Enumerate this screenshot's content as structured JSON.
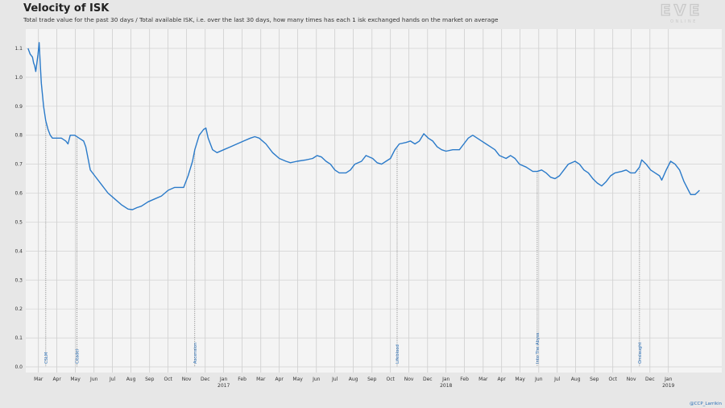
{
  "title": "Velocity of ISK",
  "subtitle": "Total trade value for the past 30 days / Total available ISK, i.e. over the last 30 days, how many times has each 1 isk exchanged hands on the market on average",
  "logo": {
    "text": "EVE",
    "subtext": "ONLINE"
  },
  "credit": "@CCP_Larrikin",
  "chart_data": {
    "type": "line",
    "title": "Velocity of ISK",
    "xlabel": "",
    "ylabel": "",
    "xlim": [
      2016.11,
      2019.24
    ],
    "ylim": [
      0,
      1.1
    ],
    "yticks": [
      "0.0",
      "0.1",
      "0.2",
      "0.3",
      "0.4",
      "0.5",
      "0.6",
      "0.7",
      "0.8",
      "0.9",
      "1.0",
      "1.1"
    ],
    "ytick_values": [
      0,
      0.1,
      0.2,
      0.3,
      0.4,
      0.5,
      0.6,
      0.7,
      0.8,
      0.9,
      1.0,
      1.1
    ],
    "grid": true,
    "line_color": "#2a7ac9",
    "xticks": [
      {
        "t": 2016.167,
        "label": "Mar",
        "year": ""
      },
      {
        "t": 2016.25,
        "label": "Apr",
        "year": ""
      },
      {
        "t": 2016.333,
        "label": "May",
        "year": ""
      },
      {
        "t": 2016.417,
        "label": "Jun",
        "year": ""
      },
      {
        "t": 2016.5,
        "label": "Jul",
        "year": ""
      },
      {
        "t": 2016.583,
        "label": "Aug",
        "year": ""
      },
      {
        "t": 2016.667,
        "label": "Sep",
        "year": ""
      },
      {
        "t": 2016.75,
        "label": "Oct",
        "year": ""
      },
      {
        "t": 2016.833,
        "label": "Nov",
        "year": ""
      },
      {
        "t": 2016.917,
        "label": "Dec",
        "year": ""
      },
      {
        "t": 2017.0,
        "label": "Jan",
        "year": "2017"
      },
      {
        "t": 2017.083,
        "label": "Feb",
        "year": ""
      },
      {
        "t": 2017.167,
        "label": "Mar",
        "year": ""
      },
      {
        "t": 2017.25,
        "label": "Apr",
        "year": ""
      },
      {
        "t": 2017.333,
        "label": "May",
        "year": ""
      },
      {
        "t": 2017.417,
        "label": "Jun",
        "year": ""
      },
      {
        "t": 2017.5,
        "label": "Jul",
        "year": ""
      },
      {
        "t": 2017.583,
        "label": "Aug",
        "year": ""
      },
      {
        "t": 2017.667,
        "label": "Sep",
        "year": ""
      },
      {
        "t": 2017.75,
        "label": "Oct",
        "year": ""
      },
      {
        "t": 2017.833,
        "label": "Nov",
        "year": ""
      },
      {
        "t": 2017.917,
        "label": "Dec",
        "year": ""
      },
      {
        "t": 2018.0,
        "label": "Jan",
        "year": "2018"
      },
      {
        "t": 2018.083,
        "label": "Feb",
        "year": ""
      },
      {
        "t": 2018.167,
        "label": "Mar",
        "year": ""
      },
      {
        "t": 2018.25,
        "label": "Apr",
        "year": ""
      },
      {
        "t": 2018.333,
        "label": "May",
        "year": ""
      },
      {
        "t": 2018.417,
        "label": "Jun",
        "year": ""
      },
      {
        "t": 2018.5,
        "label": "Jul",
        "year": ""
      },
      {
        "t": 2018.583,
        "label": "Aug",
        "year": ""
      },
      {
        "t": 2018.667,
        "label": "Sep",
        "year": ""
      },
      {
        "t": 2018.75,
        "label": "Oct",
        "year": ""
      },
      {
        "t": 2018.833,
        "label": "Nov",
        "year": ""
      },
      {
        "t": 2018.917,
        "label": "Dec",
        "year": ""
      },
      {
        "t": 2019.0,
        "label": "Jan",
        "year": "2019"
      }
    ],
    "annotations": [
      {
        "t": 2016.2,
        "label": "CSLM"
      },
      {
        "t": 2016.34,
        "label": "Citadel"
      },
      {
        "t": 2016.87,
        "label": "Ascension"
      },
      {
        "t": 2017.78,
        "label": "Lifeblood"
      },
      {
        "t": 2018.41,
        "label": "Into The Abyss"
      },
      {
        "t": 2018.87,
        "label": "Onslaught"
      }
    ],
    "series": [
      {
        "points": [
          [
            2016.12,
            1.1
          ],
          [
            2016.13,
            1.08
          ],
          [
            2016.14,
            1.07
          ],
          [
            2016.145,
            1.05
          ],
          [
            2016.15,
            1.04
          ],
          [
            2016.155,
            1.02
          ],
          [
            2016.16,
            1.05
          ],
          [
            2016.165,
            1.08
          ],
          [
            2016.17,
            1.12
          ],
          [
            2016.175,
            1.05
          ],
          [
            2016.18,
            0.98
          ],
          [
            2016.19,
            0.9
          ],
          [
            2016.2,
            0.85
          ],
          [
            2016.21,
            0.82
          ],
          [
            2016.22,
            0.8
          ],
          [
            2016.23,
            0.79
          ],
          [
            2016.25,
            0.79
          ],
          [
            2016.27,
            0.79
          ],
          [
            2016.29,
            0.78
          ],
          [
            2016.3,
            0.77
          ],
          [
            2016.31,
            0.8
          ],
          [
            2016.33,
            0.8
          ],
          [
            2016.35,
            0.79
          ],
          [
            2016.37,
            0.78
          ],
          [
            2016.38,
            0.76
          ],
          [
            2016.39,
            0.72
          ],
          [
            2016.4,
            0.68
          ],
          [
            2016.42,
            0.66
          ],
          [
            2016.45,
            0.63
          ],
          [
            2016.48,
            0.6
          ],
          [
            2016.51,
            0.58
          ],
          [
            2016.54,
            0.56
          ],
          [
            2016.57,
            0.545
          ],
          [
            2016.59,
            0.543
          ],
          [
            2016.61,
            0.55
          ],
          [
            2016.63,
            0.555
          ],
          [
            2016.66,
            0.57
          ],
          [
            2016.69,
            0.58
          ],
          [
            2016.72,
            0.59
          ],
          [
            2016.75,
            0.61
          ],
          [
            2016.78,
            0.62
          ],
          [
            2016.8,
            0.62
          ],
          [
            2016.82,
            0.62
          ],
          [
            2016.84,
            0.66
          ],
          [
            2016.86,
            0.71
          ],
          [
            2016.87,
            0.75
          ],
          [
            2016.89,
            0.8
          ],
          [
            2016.91,
            0.82
          ],
          [
            2016.92,
            0.825
          ],
          [
            2016.93,
            0.79
          ],
          [
            2016.95,
            0.75
          ],
          [
            2016.97,
            0.74
          ],
          [
            2017.0,
            0.75
          ],
          [
            2017.03,
            0.76
          ],
          [
            2017.06,
            0.77
          ],
          [
            2017.09,
            0.78
          ],
          [
            2017.12,
            0.79
          ],
          [
            2017.14,
            0.795
          ],
          [
            2017.16,
            0.79
          ],
          [
            2017.19,
            0.77
          ],
          [
            2017.22,
            0.74
          ],
          [
            2017.25,
            0.72
          ],
          [
            2017.28,
            0.71
          ],
          [
            2017.3,
            0.705
          ],
          [
            2017.33,
            0.71
          ],
          [
            2017.37,
            0.715
          ],
          [
            2017.4,
            0.72
          ],
          [
            2017.42,
            0.73
          ],
          [
            2017.44,
            0.725
          ],
          [
            2017.46,
            0.71
          ],
          [
            2017.48,
            0.7
          ],
          [
            2017.5,
            0.68
          ],
          [
            2017.52,
            0.67
          ],
          [
            2017.55,
            0.67
          ],
          [
            2017.57,
            0.68
          ],
          [
            2017.59,
            0.7
          ],
          [
            2017.62,
            0.71
          ],
          [
            2017.64,
            0.73
          ],
          [
            2017.67,
            0.72
          ],
          [
            2017.69,
            0.705
          ],
          [
            2017.71,
            0.7
          ],
          [
            2017.73,
            0.71
          ],
          [
            2017.75,
            0.72
          ],
          [
            2017.77,
            0.75
          ],
          [
            2017.79,
            0.77
          ],
          [
            2017.82,
            0.775
          ],
          [
            2017.84,
            0.78
          ],
          [
            2017.86,
            0.77
          ],
          [
            2017.88,
            0.78
          ],
          [
            2017.9,
            0.805
          ],
          [
            2017.92,
            0.79
          ],
          [
            2017.94,
            0.78
          ],
          [
            2017.96,
            0.76
          ],
          [
            2017.98,
            0.75
          ],
          [
            2018.0,
            0.745
          ],
          [
            2018.03,
            0.75
          ],
          [
            2018.06,
            0.75
          ],
          [
            2018.08,
            0.77
          ],
          [
            2018.1,
            0.79
          ],
          [
            2018.12,
            0.8
          ],
          [
            2018.14,
            0.79
          ],
          [
            2018.16,
            0.78
          ],
          [
            2018.18,
            0.77
          ],
          [
            2018.2,
            0.76
          ],
          [
            2018.22,
            0.75
          ],
          [
            2018.24,
            0.73
          ],
          [
            2018.27,
            0.72
          ],
          [
            2018.29,
            0.73
          ],
          [
            2018.31,
            0.72
          ],
          [
            2018.33,
            0.7
          ],
          [
            2018.36,
            0.69
          ],
          [
            2018.39,
            0.675
          ],
          [
            2018.41,
            0.675
          ],
          [
            2018.43,
            0.68
          ],
          [
            2018.45,
            0.67
          ],
          [
            2018.47,
            0.655
          ],
          [
            2018.49,
            0.65
          ],
          [
            2018.51,
            0.66
          ],
          [
            2018.53,
            0.68
          ],
          [
            2018.55,
            0.7
          ],
          [
            2018.58,
            0.71
          ],
          [
            2018.6,
            0.7
          ],
          [
            2018.62,
            0.68
          ],
          [
            2018.64,
            0.67
          ],
          [
            2018.66,
            0.65
          ],
          [
            2018.68,
            0.635
          ],
          [
            2018.7,
            0.625
          ],
          [
            2018.72,
            0.64
          ],
          [
            2018.74,
            0.66
          ],
          [
            2018.76,
            0.67
          ],
          [
            2018.79,
            0.675
          ],
          [
            2018.81,
            0.68
          ],
          [
            2018.83,
            0.67
          ],
          [
            2018.85,
            0.67
          ],
          [
            2018.87,
            0.69
          ],
          [
            2018.88,
            0.715
          ],
          [
            2018.9,
            0.7
          ],
          [
            2018.92,
            0.68
          ],
          [
            2018.94,
            0.67
          ],
          [
            2018.96,
            0.66
          ],
          [
            2018.97,
            0.645
          ],
          [
            2018.99,
            0.68
          ],
          [
            2019.01,
            0.71
          ],
          [
            2019.03,
            0.7
          ],
          [
            2019.05,
            0.68
          ],
          [
            2019.07,
            0.64
          ],
          [
            2019.09,
            0.61
          ],
          [
            2019.1,
            0.595
          ],
          [
            2019.12,
            0.595
          ],
          [
            2019.14,
            0.61
          ]
        ]
      }
    ]
  }
}
